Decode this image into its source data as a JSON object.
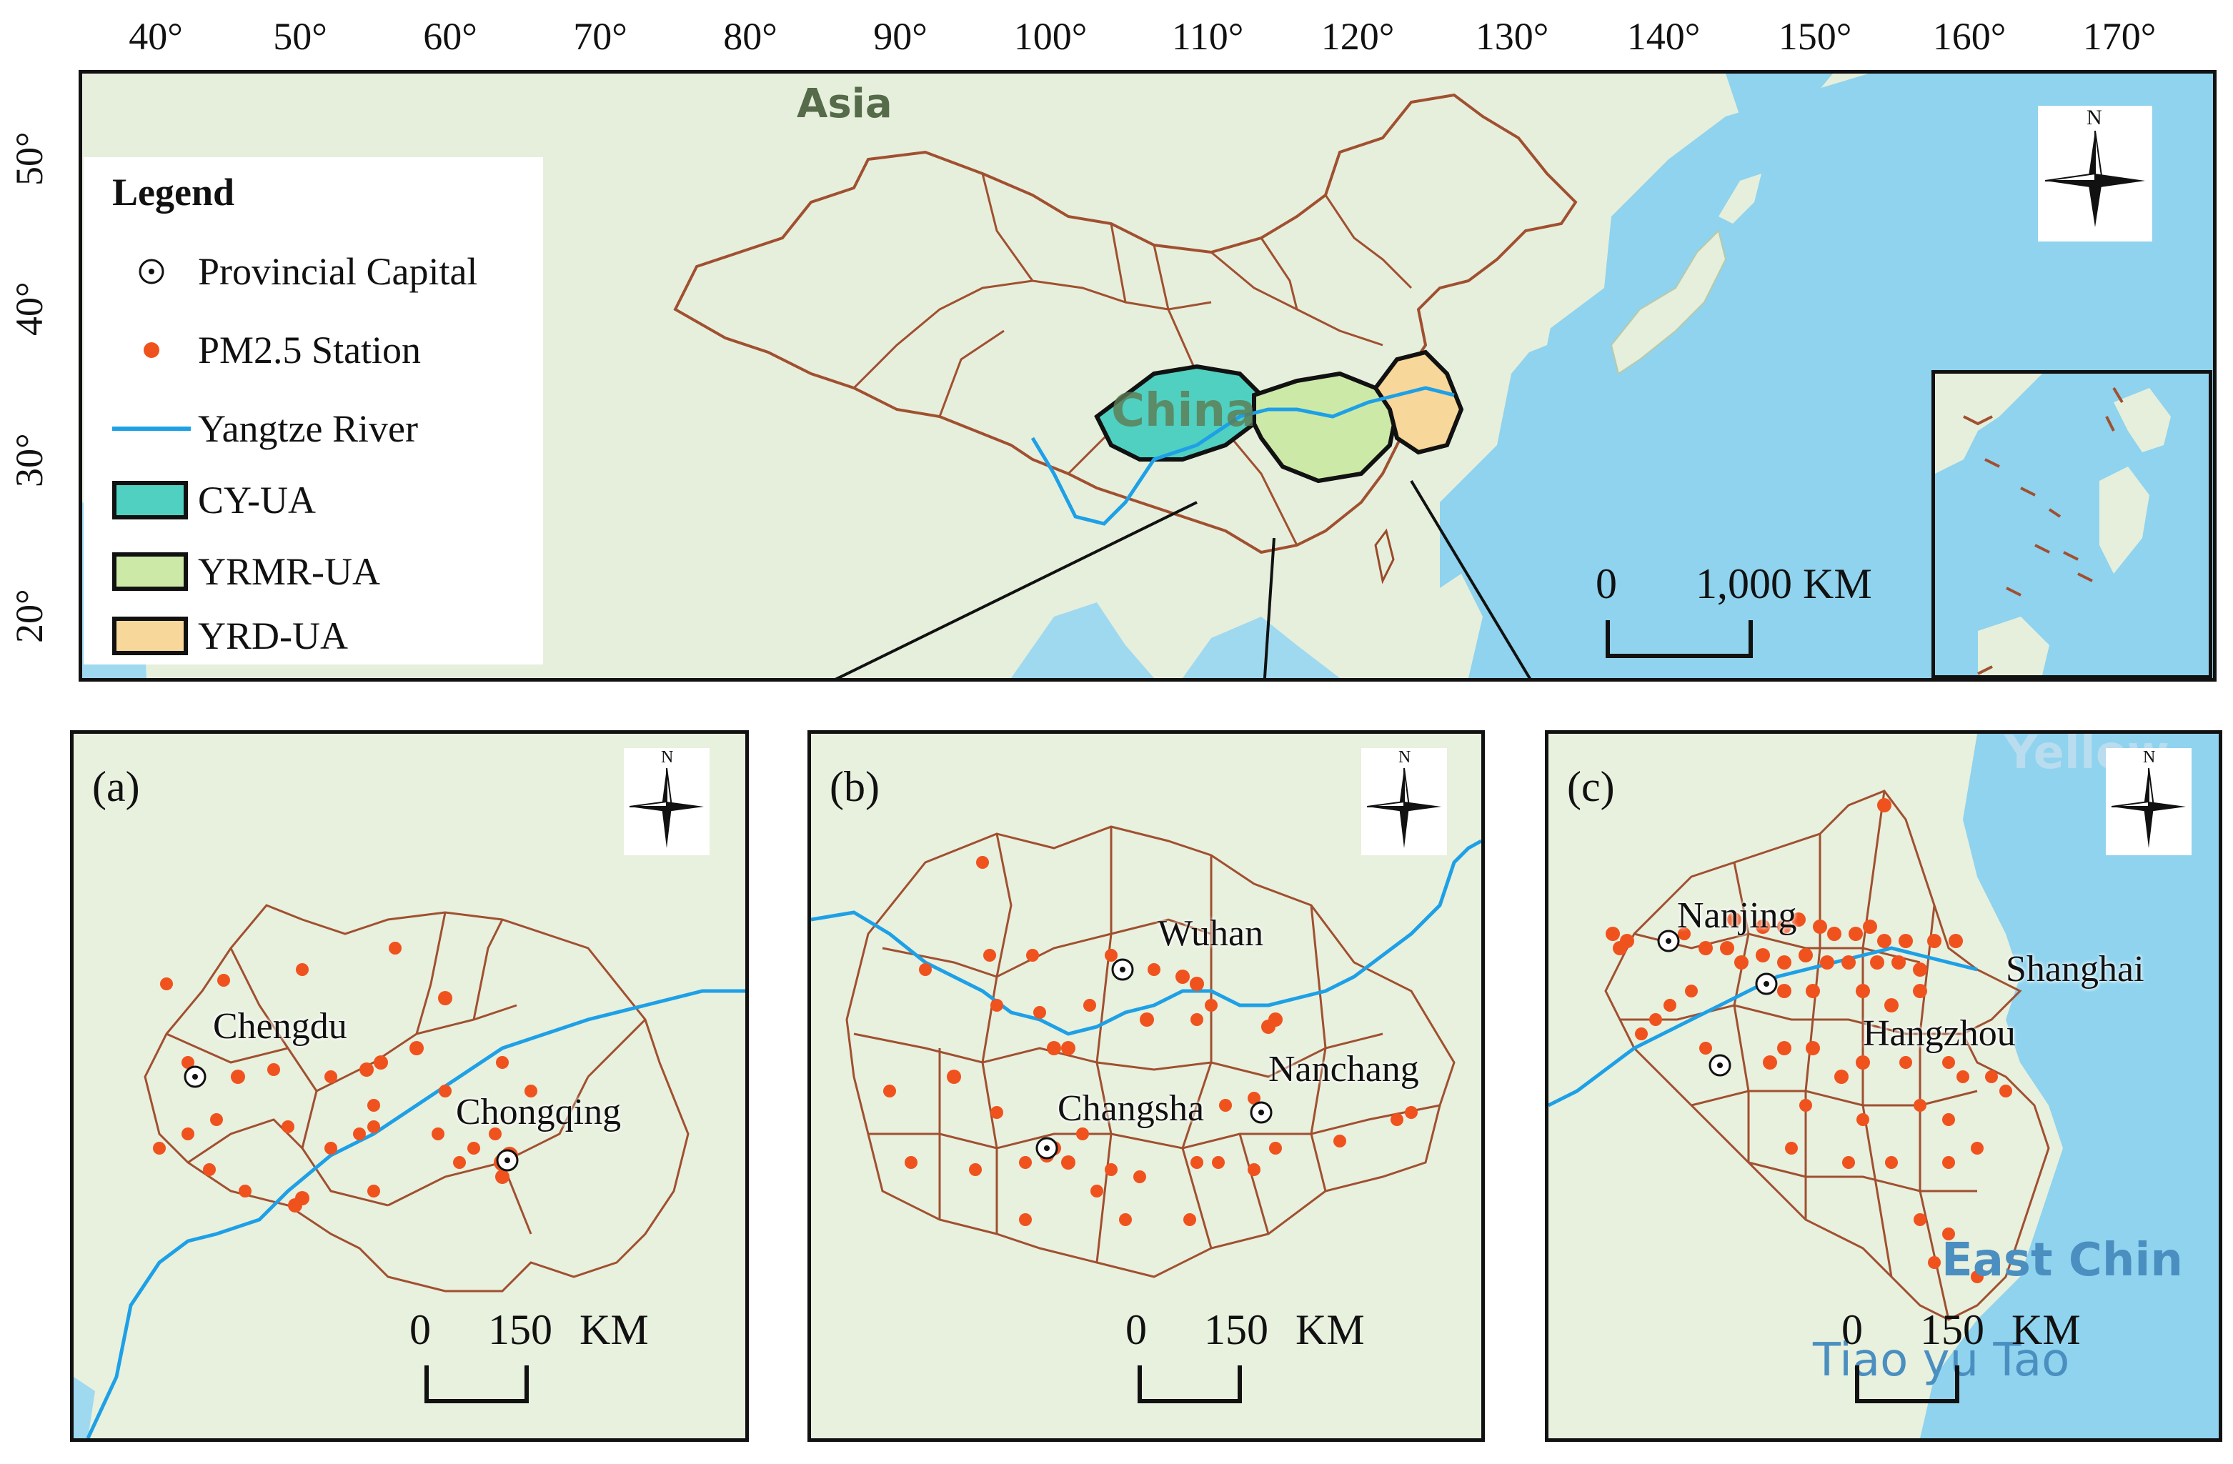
{
  "axes": {
    "longitude_ticks": [
      "40°",
      "50°",
      "60°",
      "70°",
      "80°",
      "90°",
      "100°",
      "110°",
      "120°",
      "130°",
      "140°",
      "150°",
      "160°",
      "170°"
    ],
    "latitude_ticks": [
      "50°",
      "40°",
      "30°",
      "20°"
    ]
  },
  "legend": {
    "title": "Legend",
    "items": [
      {
        "label": "Provincial Capital",
        "symbol": "capital-icon"
      },
      {
        "label": "PM2.5 Station",
        "symbol": "station-dot",
        "color": "#f0521e"
      },
      {
        "label": "Yangtze River",
        "symbol": "river-line",
        "color": "#1ea0e6"
      },
      {
        "label": "CY-UA",
        "symbol": "fill-box",
        "color": "#4fd0c0"
      },
      {
        "label": "YRMR-UA",
        "symbol": "fill-box",
        "color": "#cde9a8"
      },
      {
        "label": "YRD-UA",
        "symbol": "fill-box",
        "color": "#f8d79a"
      }
    ]
  },
  "main_map": {
    "labels": {
      "continent": "Asia",
      "country": "China"
    },
    "north": "N",
    "scale": {
      "start": "0",
      "end": "1,000 KM"
    }
  },
  "panels": [
    {
      "id": "a",
      "label": "(a)",
      "north": "N",
      "scale_start": "0",
      "scale_end": "150",
      "scale_unit": "KM",
      "cities": [
        "Chengdu",
        "Chongqing"
      ]
    },
    {
      "id": "b",
      "label": "(b)",
      "north": "N",
      "scale_start": "0",
      "scale_end": "150",
      "scale_unit": "KM",
      "cities": [
        "Wuhan",
        "Nanchang",
        "Changsha"
      ]
    },
    {
      "id": "c",
      "label": "(c)",
      "north": "N",
      "scale_start": "0",
      "scale_end": "150",
      "scale_unit": "KM",
      "cities": [
        "Nanjing",
        "Shanghai",
        "Hangzhou"
      ],
      "basemap_labels": [
        "Yellow",
        "East Chin",
        "Tiao yu Tao"
      ]
    }
  ],
  "colors": {
    "land": "#e4efd9",
    "ocean": "#8fd3ee",
    "border": "#9a4a2a",
    "station": "#f0521e",
    "river": "#1ea0e6"
  }
}
